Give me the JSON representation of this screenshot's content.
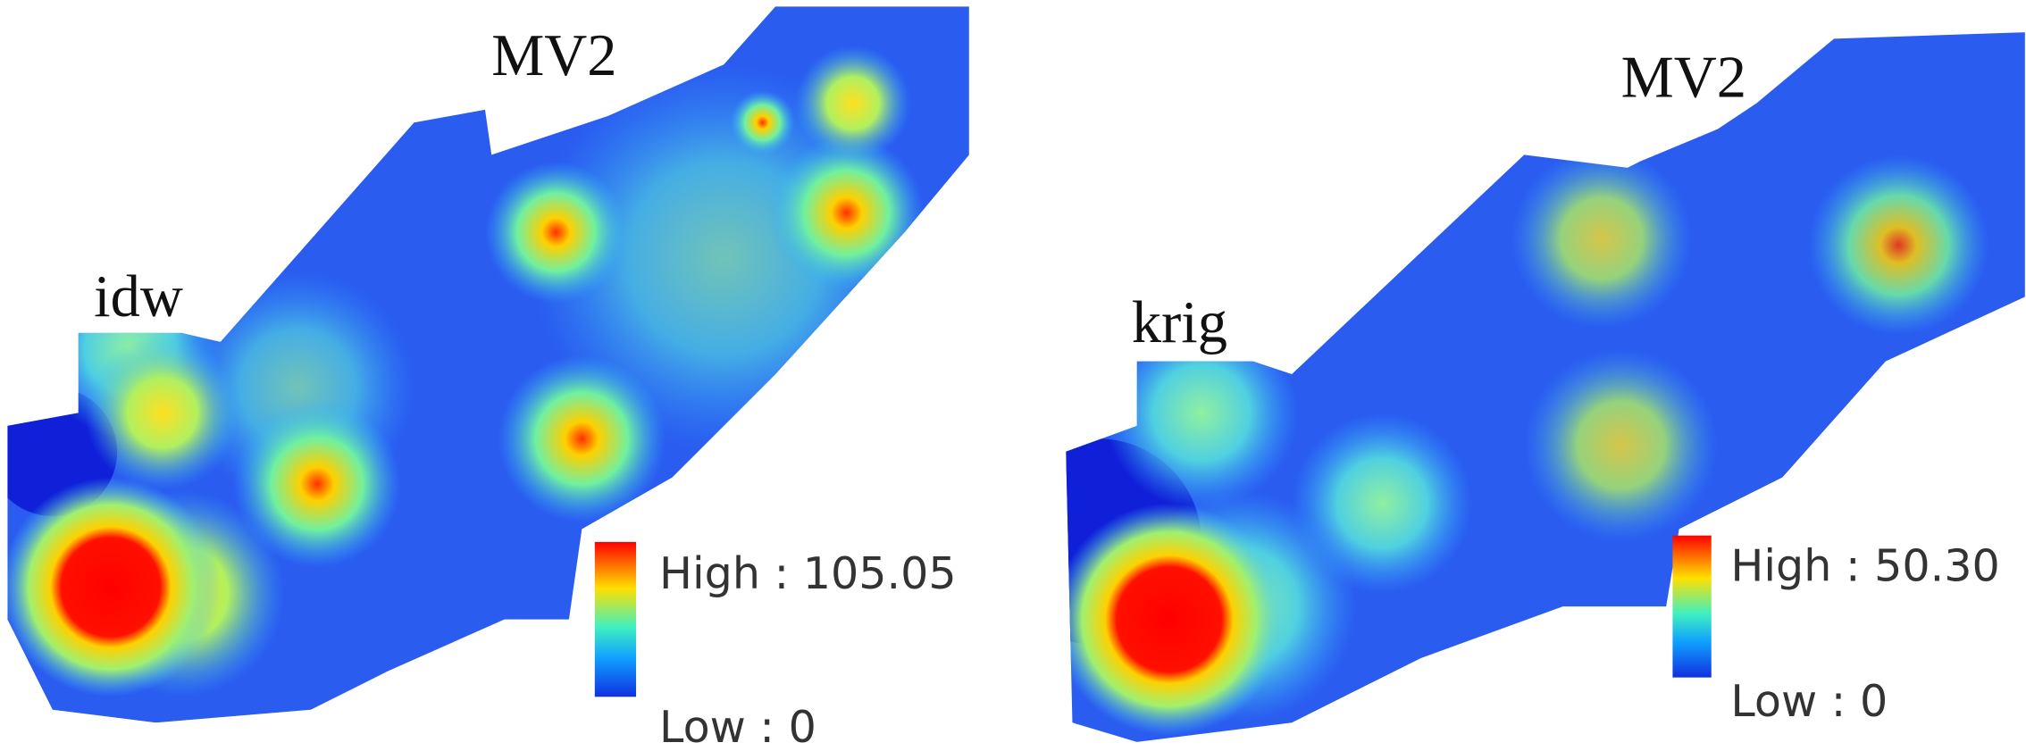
{
  "panels": [
    {
      "method": "idw",
      "variable": "MV2",
      "legend": {
        "high": "High : 105.05",
        "low": "Low : 0"
      }
    },
    {
      "method": "krig",
      "variable": "MV2",
      "legend": {
        "high": "High : 50.30",
        "low": "Low : 0"
      }
    }
  ]
}
